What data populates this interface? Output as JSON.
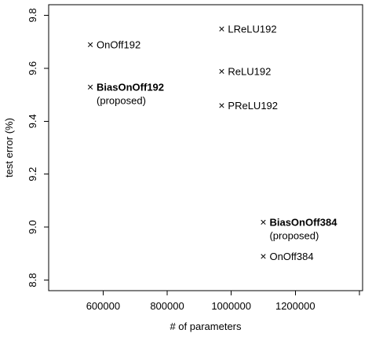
{
  "chart_data": {
    "type": "scatter",
    "title": "",
    "xlabel": "# of parameters",
    "ylabel": "test error (%)",
    "xlim": [
      430000,
      1410000
    ],
    "ylim": [
      8.76,
      9.84
    ],
    "xticks": [
      600000,
      800000,
      1000000,
      1200000
    ],
    "xtick_labels": [
      "600000",
      "800000",
      "1000000",
      "1200000"
    ],
    "yticks": [
      8.8,
      9.0,
      9.2,
      9.4,
      9.6,
      9.8
    ],
    "ytick_labels": [
      "8.8",
      "9.0",
      "9.2",
      "9.4",
      "9.6",
      "9.8"
    ],
    "grid": false,
    "legend": "none",
    "marker": "×",
    "points": [
      {
        "name": "OnOff192",
        "x": 560000,
        "y": 9.69,
        "bold": false,
        "note": ""
      },
      {
        "name": "BiasOnOff192",
        "x": 560000,
        "y": 9.53,
        "bold": true,
        "note": "(proposed)"
      },
      {
        "name": "LReLU192",
        "x": 970000,
        "y": 9.75,
        "bold": false,
        "note": ""
      },
      {
        "name": "ReLU192",
        "x": 970000,
        "y": 9.59,
        "bold": false,
        "note": ""
      },
      {
        "name": "PReLU192",
        "x": 970000,
        "y": 9.46,
        "bold": false,
        "note": ""
      },
      {
        "name": "BiasOnOff384",
        "x": 1100000,
        "y": 9.02,
        "bold": true,
        "note": "(proposed)"
      },
      {
        "name": "OnOff384",
        "x": 1100000,
        "y": 8.89,
        "bold": false,
        "note": ""
      }
    ]
  }
}
